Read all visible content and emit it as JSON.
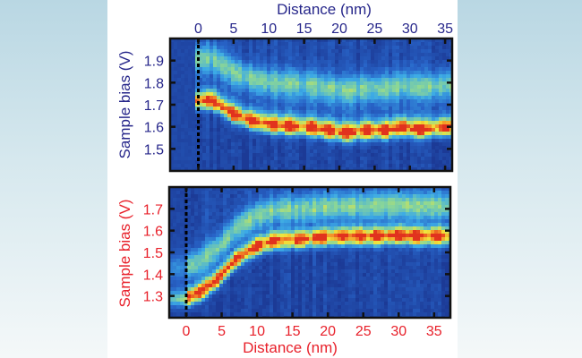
{
  "chart_data": [
    {
      "type": "heatmap",
      "xlabel": "Distance (nm)",
      "ylabel": "Sample bias (V)",
      "x_axis_position": "top",
      "label_color": "#26268a",
      "xlim": [
        -4,
        36
      ],
      "ylim": [
        1.4,
        2.0
      ],
      "xticks": [
        "0",
        "5",
        "10",
        "15",
        "20",
        "25",
        "30",
        "35"
      ],
      "yticks": [
        "1.5",
        "1.6",
        "1.7",
        "1.8",
        "1.9"
      ],
      "reference_line_x": 0,
      "colormap": "jet",
      "band_peaks": [
        [
          2,
          1.71
        ],
        [
          5,
          1.65
        ],
        [
          7.5,
          1.62
        ],
        [
          10.5,
          1.6
        ],
        [
          13,
          1.595
        ],
        [
          16,
          1.59
        ],
        [
          18.5,
          1.575
        ],
        [
          21,
          1.565
        ],
        [
          24,
          1.575
        ],
        [
          26.5,
          1.575
        ],
        [
          29,
          1.59
        ],
        [
          31.5,
          1.58
        ],
        [
          35,
          1.59
        ]
      ],
      "upper_band_offset": 0.2
    },
    {
      "type": "heatmap",
      "xlabel": "Distance (nm)",
      "ylabel": "Sample bias (V)",
      "x_axis_position": "bottom",
      "label_color": "#e8202a",
      "xlim": [
        -2.4,
        37.3
      ],
      "ylim": [
        1.2,
        1.8
      ],
      "xticks": [
        "0",
        "5",
        "10",
        "15",
        "20",
        "25",
        "30",
        "35"
      ],
      "yticks": [
        "1.3",
        "1.4",
        "1.5",
        "1.6",
        "1.7"
      ],
      "reference_line_x": 0,
      "colormap": "jet",
      "band_peaks": [
        [
          0,
          1.28
        ],
        [
          2,
          1.31
        ],
        [
          4.5,
          1.37
        ],
        [
          7,
          1.46
        ],
        [
          10,
          1.52
        ],
        [
          12.5,
          1.545
        ],
        [
          16,
          1.55
        ],
        [
          19,
          1.56
        ],
        [
          22,
          1.565
        ],
        [
          24.5,
          1.565
        ],
        [
          27,
          1.565
        ],
        [
          30,
          1.57
        ],
        [
          32.5,
          1.565
        ],
        [
          35.5,
          1.565
        ]
      ],
      "upper_band_offset": 0.15
    }
  ]
}
